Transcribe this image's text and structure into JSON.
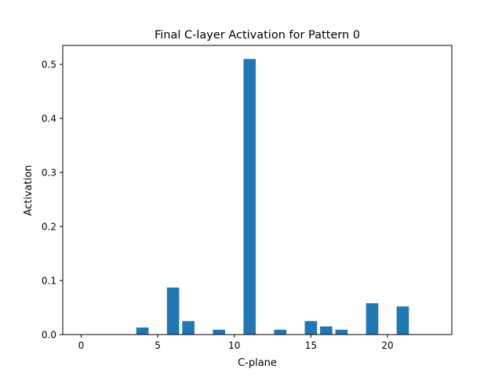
{
  "chart_data": {
    "type": "bar",
    "title": "Final C-layer Activation for Pattern 0",
    "xlabel": "C-plane",
    "ylabel": "Activation",
    "x": [
      0,
      1,
      2,
      3,
      4,
      5,
      6,
      7,
      8,
      9,
      10,
      11,
      12,
      13,
      14,
      15,
      16,
      17,
      18,
      19,
      20,
      21,
      22,
      23
    ],
    "values": [
      0,
      0,
      0,
      0,
      0.013,
      0,
      0.087,
      0.025,
      0,
      0.009,
      0,
      0.51,
      0,
      0.009,
      0,
      0.025,
      0.015,
      0.009,
      0,
      0.058,
      0,
      0.052,
      0,
      0
    ],
    "xlim": [
      -1.2,
      24.2
    ],
    "ylim": [
      0,
      0.535
    ],
    "xticks": [
      0,
      5,
      10,
      15,
      20
    ],
    "xtick_labels": [
      "0",
      "5",
      "10",
      "15",
      "20"
    ],
    "yticks": [
      0.0,
      0.1,
      0.2,
      0.3,
      0.4,
      0.5
    ],
    "ytick_labels": [
      "0.0",
      "0.1",
      "0.2",
      "0.3",
      "0.4",
      "0.5"
    ],
    "bar_color": "#1f77b4",
    "grid": false,
    "legend": false
  }
}
